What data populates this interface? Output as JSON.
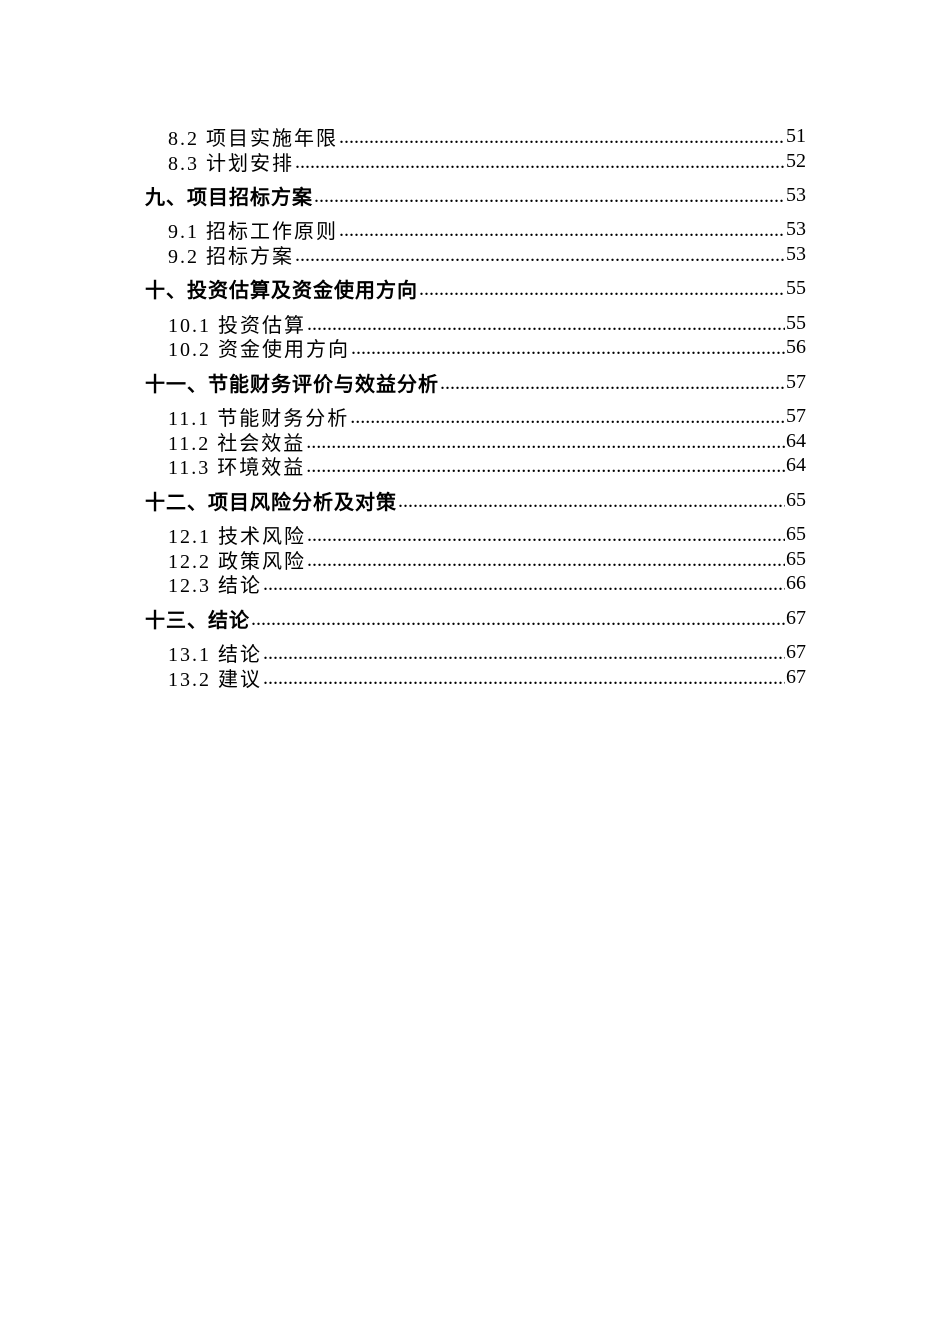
{
  "toc": [
    {
      "level": 2,
      "title": "8.2 项目实施年限",
      "page": "51"
    },
    {
      "level": 2,
      "title": "8.3 计划安排",
      "page": "52"
    },
    {
      "level": 1,
      "title": "九、项目招标方案",
      "page": "53"
    },
    {
      "level": 2,
      "title": "9.1 招标工作原则",
      "page": "53"
    },
    {
      "level": 2,
      "title": "9.2 招标方案",
      "page": "53"
    },
    {
      "level": 1,
      "title": "十、投资估算及资金使用方向",
      "page": "55"
    },
    {
      "level": 2,
      "title": "10.1 投资估算",
      "page": "55"
    },
    {
      "level": 2,
      "title": "10.2 资金使用方向",
      "page": "56"
    },
    {
      "level": 1,
      "title": "十一、节能财务评价与效益分析",
      "page": "57"
    },
    {
      "level": 2,
      "title": "11.1 节能财务分析",
      "page": "57"
    },
    {
      "level": 2,
      "title": "11.2 社会效益",
      "page": "64"
    },
    {
      "level": 2,
      "title": "11.3 环境效益",
      "page": "64"
    },
    {
      "level": 1,
      "title": "十二、项目风险分析及对策",
      "page": "65"
    },
    {
      "level": 2,
      "title": "12.1 技术风险",
      "page": "65"
    },
    {
      "level": 2,
      "title": "12.2 政策风险",
      "page": "65"
    },
    {
      "level": 2,
      "title": "12.3 结论",
      "page": "66"
    },
    {
      "level": 1,
      "title": "十三、结论",
      "page": "67"
    },
    {
      "level": 2,
      "title": "13.1 结论",
      "page": "67"
    },
    {
      "level": 2,
      "title": "13.2 建议",
      "page": "67"
    }
  ]
}
